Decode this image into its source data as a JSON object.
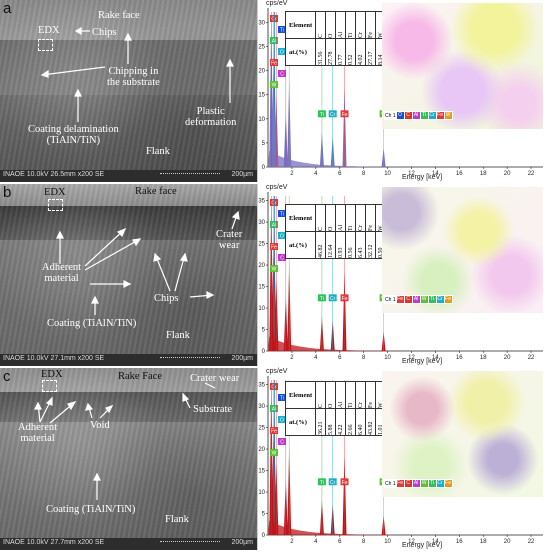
{
  "panels": [
    {
      "letter": "a",
      "sem": {
        "labels": {
          "rake_face": "Rake face",
          "edx": "EDX",
          "chips": "Chips",
          "chipping": "Chipping in\nthe substrate",
          "plastic": "Plastic\ndeformation",
          "coating_delam": "Coating delamination\n(TiAlN/TiN)",
          "flank": "Flank"
        },
        "footer": "INAOE 10.0kV 26.5mm x200 SE",
        "scale": "200µm"
      },
      "spectrum": {
        "y_unit": "cps/eV",
        "x_label": "Energy [keV]",
        "y_ticks": [
          "0",
          "5",
          "10",
          "15",
          "20",
          "25",
          "30"
        ],
        "x_ticks": [
          "2",
          "4",
          "6",
          "8",
          "10",
          "12",
          "14",
          "16",
          "18",
          "20",
          "22"
        ],
        "ylim": [
          0,
          33
        ],
        "xlim": [
          0,
          23
        ],
        "peak_labels": [
          "Cr",
          "Ti",
          "Al",
          "O",
          "Fe",
          "C",
          "W",
          "Ti",
          "Cr",
          "Fe",
          "W"
        ],
        "table": {
          "header_row": [
            "Element",
            "C",
            "O",
            "Al",
            "Ti",
            "Cr",
            "Fe",
            "W"
          ],
          "value_row": [
            "at.(%)",
            "31.56",
            "27.78",
            "0.77",
            "0.52",
            "4.02",
            "27.17",
            "8.14"
          ]
        },
        "map_legend": [
          "Ch 1",
          "O",
          "C",
          "Al",
          "Ti",
          "Cr",
          "Fe",
          "W"
        ]
      }
    },
    {
      "letter": "b",
      "sem": {
        "labels": {
          "rake_face": "Rake face",
          "edx": "EDX",
          "crater": "Crater\nwear",
          "adherent": "Adherent\nmaterial",
          "chips": "Chips",
          "coating": "Coating (TiAlN/TiN)",
          "flank": "Flank"
        },
        "footer": "INAOE 10.0kV 27.1mm x200 SE",
        "scale": "200µm"
      },
      "spectrum": {
        "y_unit": "cps/eV",
        "x_label": "Energy [keV]",
        "y_ticks": [
          "0",
          "5",
          "10",
          "15",
          "20",
          "25",
          "30",
          "35"
        ],
        "x_ticks": [
          "2",
          "4",
          "6",
          "8",
          "10",
          "12",
          "14",
          "16",
          "18",
          "20",
          "22"
        ],
        "ylim": [
          0,
          37
        ],
        "xlim": [
          0,
          23
        ],
        "peak_labels": [
          "Cr",
          "Ti",
          "Al",
          "O",
          "Fe",
          "C",
          "W",
          "Ti",
          "Cr",
          "Fe",
          "W"
        ],
        "table": {
          "header_row": [
            "Element",
            "C",
            "O",
            "Al",
            "Ti",
            "Cr",
            "Fe",
            "W"
          ],
          "value_row": [
            "at.(%)",
            "46.82",
            "12.64",
            "0.93",
            "0.56",
            "6.43",
            "32.12",
            "0.50"
          ]
        },
        "map_legend": [
          "Ch 1",
          "Fe",
          "C",
          "Al",
          "W",
          "Ti",
          "Cr",
          "Fe"
        ]
      }
    },
    {
      "letter": "c",
      "sem": {
        "labels": {
          "rake_face": "Rake Face",
          "edx": "EDX",
          "crater": "Crater wear",
          "substrate": "Substrate",
          "adherent": "Adherent\nmaterial",
          "void": "Void",
          "coating": "Coating (TiAlN/TiN)",
          "flank": "Flank"
        },
        "footer": "INAOE 10.0kV 27.7mm x200 SE",
        "scale": "200µm"
      },
      "spectrum": {
        "y_unit": "cps/eV",
        "x_label": "Energy [keV]",
        "y_ticks": [
          "0",
          "5",
          "10",
          "15",
          "20",
          "25",
          "30",
          "35"
        ],
        "x_ticks": [
          "2",
          "4",
          "6",
          "8",
          "10",
          "12",
          "14",
          "16",
          "18",
          "20",
          "22"
        ],
        "ylim": [
          0,
          37
        ],
        "xlim": [
          0,
          23
        ],
        "peak_labels": [
          "Cr",
          "Ti",
          "Al",
          "O",
          "Fe",
          "C",
          "W",
          "Ti",
          "Cr",
          "Fe",
          "W"
        ],
        "table": {
          "header_row": [
            "Element",
            "C",
            "O",
            "Al",
            "Ti",
            "Cr",
            "Fe",
            "W"
          ],
          "value_row": [
            "at.(%)",
            "36.21",
            "5.88",
            "4.22",
            "2.66",
            "6.40",
            "43.82",
            "1.01"
          ]
        },
        "map_legend": [
          "Ch 1",
          "Fe",
          "C",
          "Al",
          "W",
          "Ti",
          "Cr",
          "Fe"
        ]
      }
    }
  ],
  "colors": {
    "spectrum_fill_a": "#7a6fc0",
    "spectrum_fill_bc": "#c0141a",
    "peak_C": "#e0342a",
    "peak_O": "#1a4fd6",
    "peak_Al": "#c03ad0",
    "peak_Ti": "#33c05a",
    "peak_Cr": "#17b0c8",
    "peak_Fe": "#e33a3a",
    "peak_W": "#5bc12e"
  }
}
